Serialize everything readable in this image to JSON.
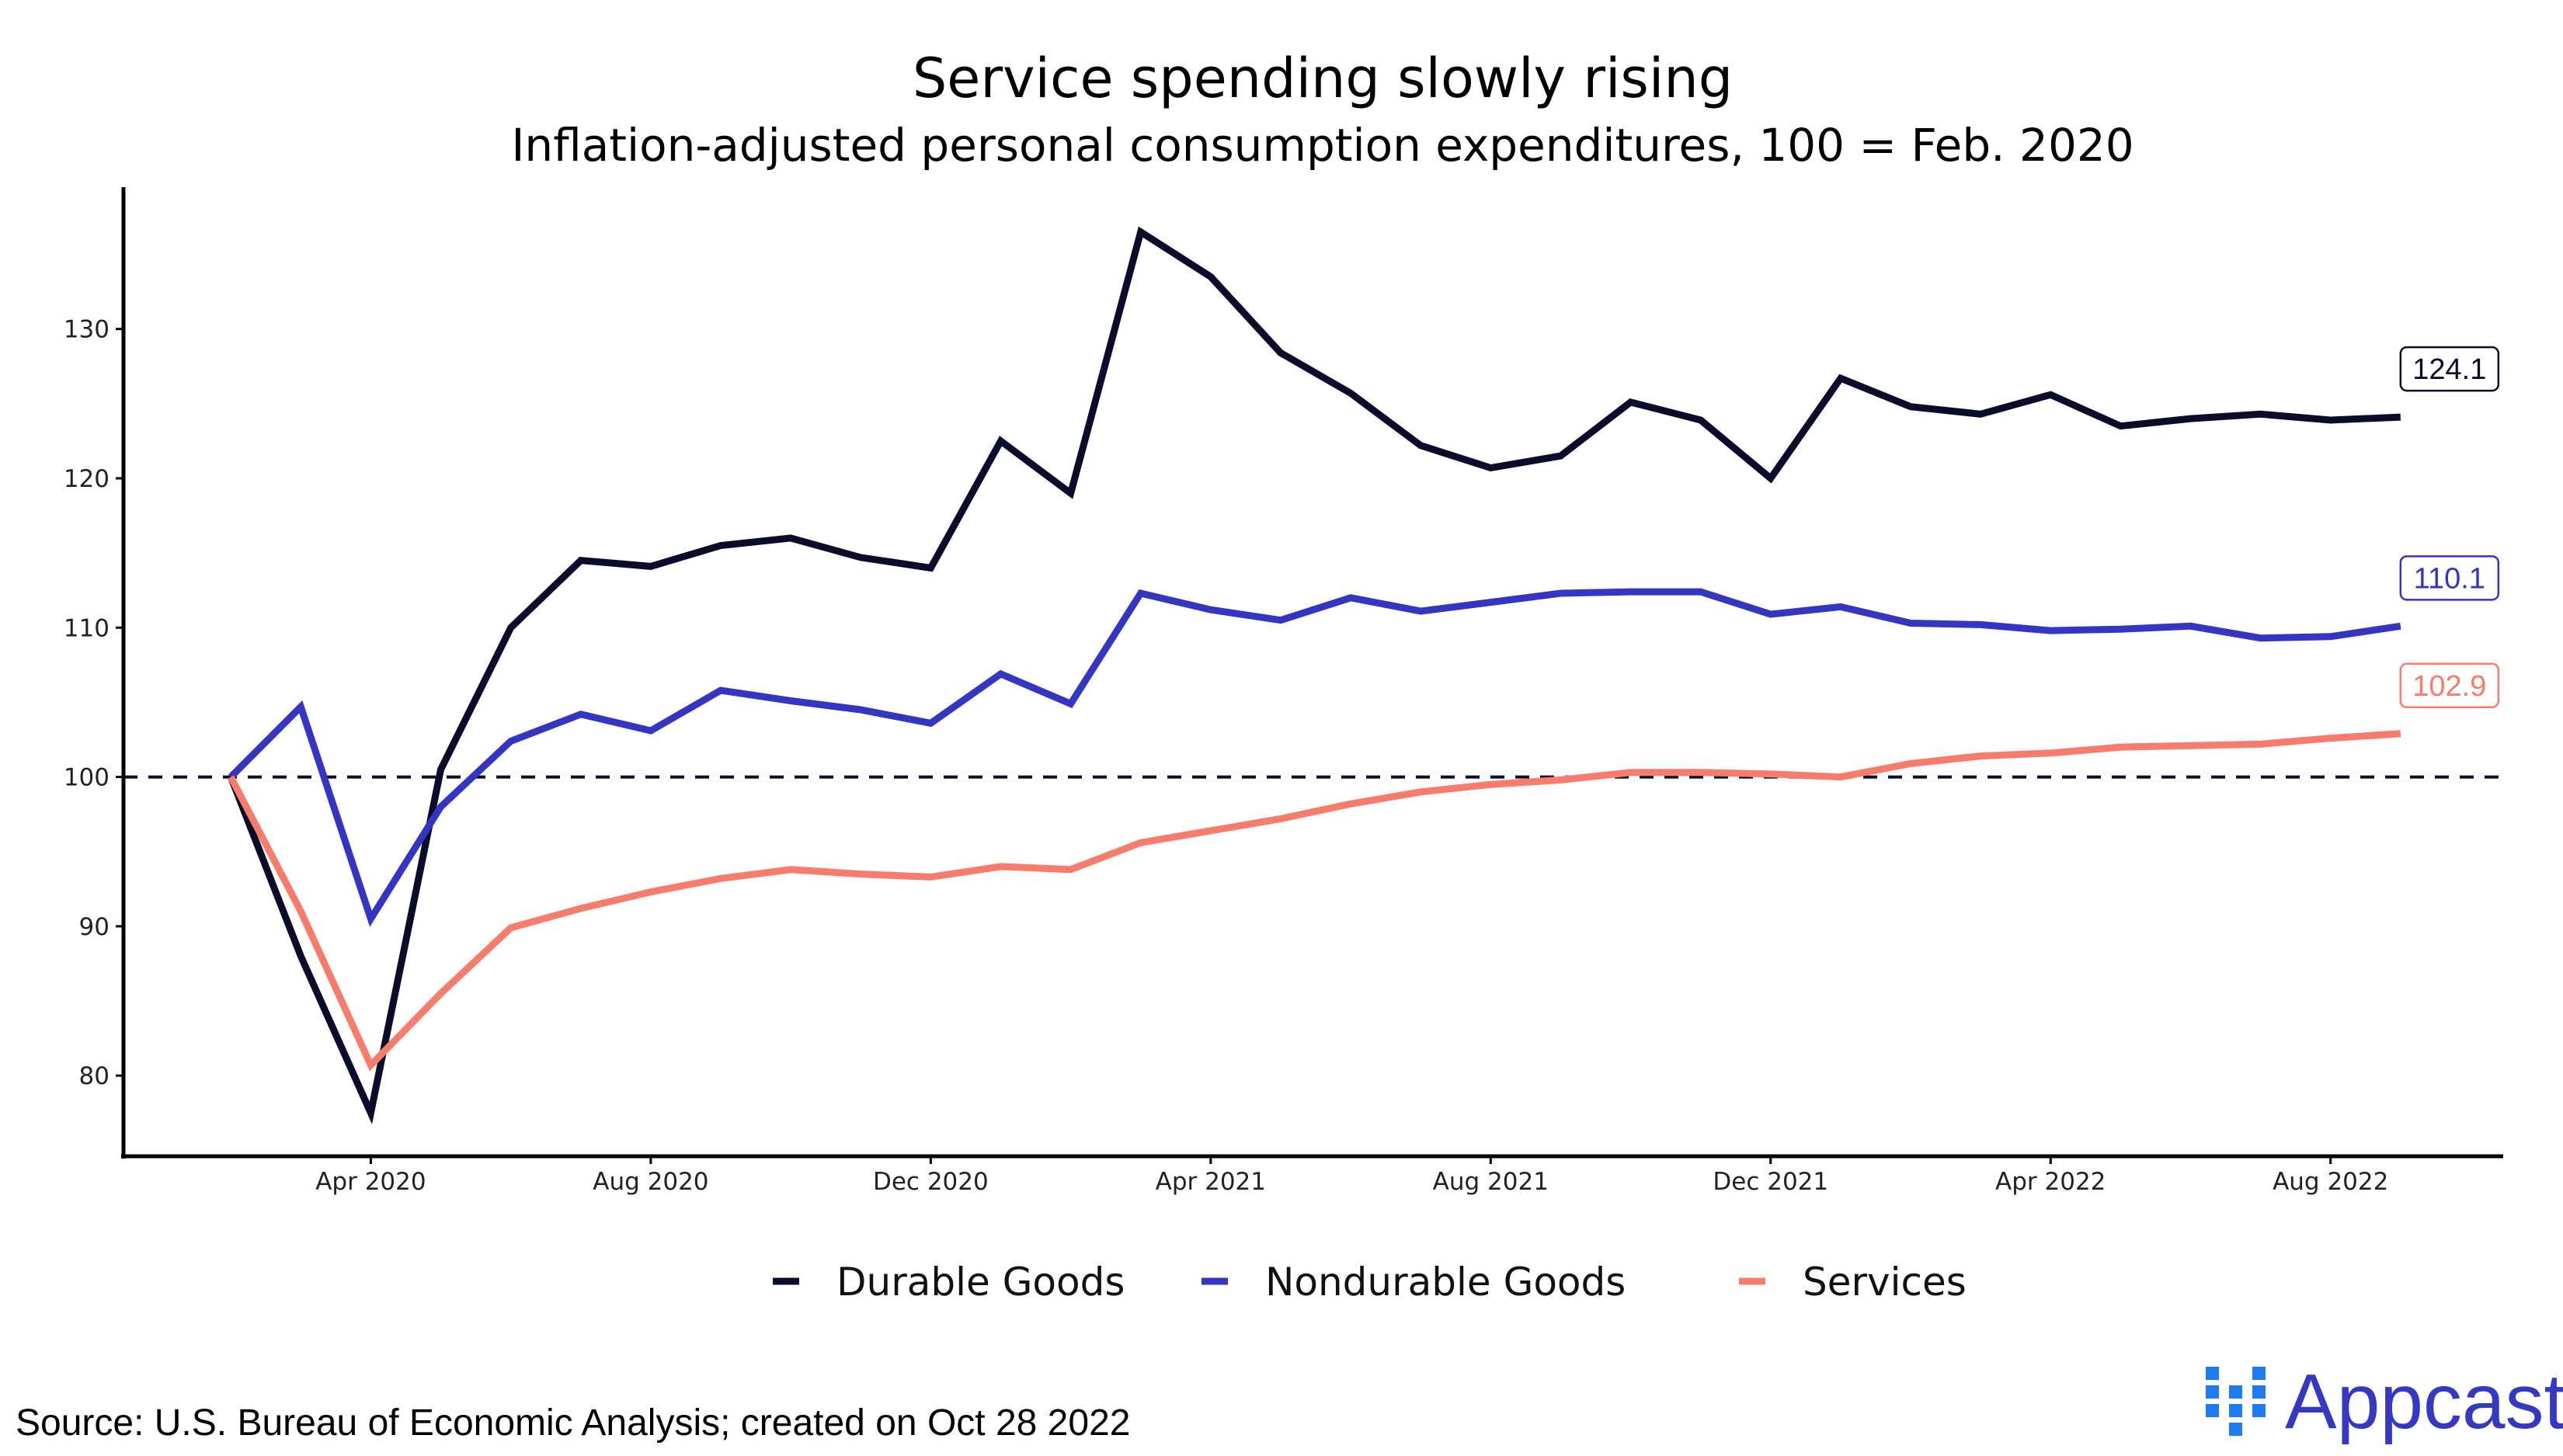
{
  "chart_data": {
    "type": "line",
    "title": "Service spending slowly rising",
    "subtitle": "Inflation-adjusted personal consumption expenditures, 100 = Feb. 2020",
    "xlabel": "",
    "ylabel": "",
    "x": [
      "2020-02",
      "2020-03",
      "2020-04",
      "2020-05",
      "2020-06",
      "2020-07",
      "2020-08",
      "2020-09",
      "2020-10",
      "2020-11",
      "2020-12",
      "2021-01",
      "2021-02",
      "2021-03",
      "2021-04",
      "2021-05",
      "2021-06",
      "2021-07",
      "2021-08",
      "2021-09",
      "2021-10",
      "2021-11",
      "2021-12",
      "2022-01",
      "2022-02",
      "2022-03",
      "2022-04",
      "2022-05",
      "2022-06",
      "2022-07",
      "2022-08",
      "2022-09"
    ],
    "x_ticks": [
      {
        "date": "2020-04",
        "label": "Apr 2020"
      },
      {
        "date": "2020-08",
        "label": "Aug 2020"
      },
      {
        "date": "2020-12",
        "label": "Dec 2020"
      },
      {
        "date": "2021-04",
        "label": "Apr 2021"
      },
      {
        "date": "2021-08",
        "label": "Aug 2021"
      },
      {
        "date": "2021-12",
        "label": "Dec 2021"
      },
      {
        "date": "2022-04",
        "label": "Apr 2022"
      },
      {
        "date": "2022-08",
        "label": "Aug 2022"
      }
    ],
    "y_ticks": [
      80,
      90,
      100,
      110,
      120,
      130
    ],
    "ylim": [
      74.6,
      139.5
    ],
    "xlim": [
      "2019-12-15",
      "2022-10-15"
    ],
    "reference_line": {
      "y": 100,
      "style": "dashed",
      "color": "#0b0b2b"
    },
    "grid": false,
    "legend_position": "bottom",
    "series": [
      {
        "name": "Durable Goods",
        "color": "#0b0b2b",
        "end_label": "124.1",
        "values": [
          100,
          88,
          77.5,
          100.5,
          110,
          114.5,
          114.1,
          115.5,
          116,
          114.7,
          114,
          122.5,
          119,
          136.5,
          133.5,
          128.4,
          125.7,
          122.2,
          120.7,
          121.5,
          125.1,
          123.9,
          120,
          126.7,
          124.8,
          124.3,
          125.6,
          123.5,
          124,
          124.3,
          123.9,
          124.1
        ]
      },
      {
        "name": "Nondurable Goods",
        "color": "#3535c3",
        "end_label": "110.1",
        "values": [
          100,
          104.7,
          90.5,
          98,
          102.4,
          104.2,
          103.1,
          105.8,
          105.1,
          104.5,
          103.6,
          106.9,
          104.9,
          112.3,
          111.2,
          110.5,
          112,
          111.1,
          111.7,
          112.3,
          112.4,
          112.4,
          110.9,
          111.4,
          110.3,
          110.2,
          109.8,
          109.9,
          110.1,
          109.3,
          109.4,
          110.1
        ]
      },
      {
        "name": "Services",
        "color": "#f87c6c",
        "end_label": "102.9",
        "values": [
          100,
          91,
          80.7,
          85.5,
          89.9,
          91.2,
          92.3,
          93.2,
          93.8,
          93.5,
          93.3,
          94,
          93.8,
          95.6,
          96.4,
          97.2,
          98.2,
          99,
          99.5,
          99.8,
          100.3,
          100.3,
          100.2,
          100,
          100.9,
          101.4,
          101.6,
          102,
          102.1,
          102.2,
          102.6,
          102.9
        ]
      }
    ]
  },
  "footer": {
    "source": "Source: U.S. Bureau of Economic Analysis; created on Oct 28 2022",
    "logo_text": "Appcast",
    "logo_tm": "™",
    "logo_colors": {
      "squares": "#1e7bf2",
      "text": "#3538c0"
    }
  }
}
